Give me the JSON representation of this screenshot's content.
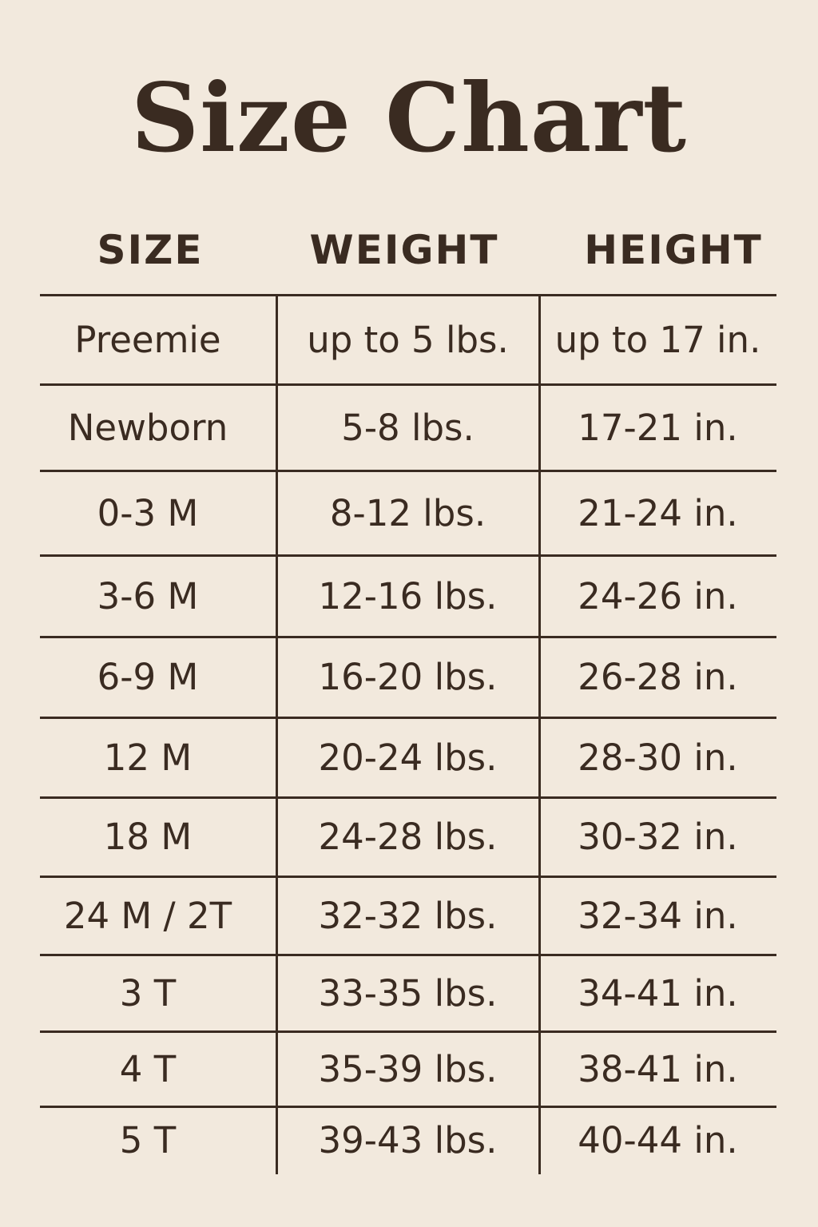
{
  "title": "Size Chart",
  "headers": [
    "SIZE",
    "WEIGHT",
    "HEIGHT"
  ],
  "rows": [
    [
      "Preemie",
      "up to 5 lbs.",
      "up to 17 in."
    ],
    [
      "Newborn",
      "5-8 lbs.",
      "17-21 in."
    ],
    [
      "0-3 M",
      "8-12 lbs.",
      "21-24 in."
    ],
    [
      "3-6 M",
      "12-16 lbs.",
      "24-26 in."
    ],
    [
      "6-9 M",
      "16-20 lbs.",
      "26-28 in."
    ],
    [
      "12 M",
      "20-24 lbs.",
      "28-30 in."
    ],
    [
      "18 M",
      "24-28 lbs.",
      "30-32 in."
    ],
    [
      "24 M / 2T",
      "32-32 lbs.",
      "32-34 in."
    ],
    [
      "3 T",
      "33-35 lbs.",
      "34-41 in."
    ],
    [
      "4 T",
      "35-39 lbs.",
      "38-41 in."
    ],
    [
      "5 T",
      "39-43 lbs.",
      "40-44 in."
    ]
  ],
  "colors": {
    "background": "#f2e9dd",
    "text": "#3a2b21"
  }
}
